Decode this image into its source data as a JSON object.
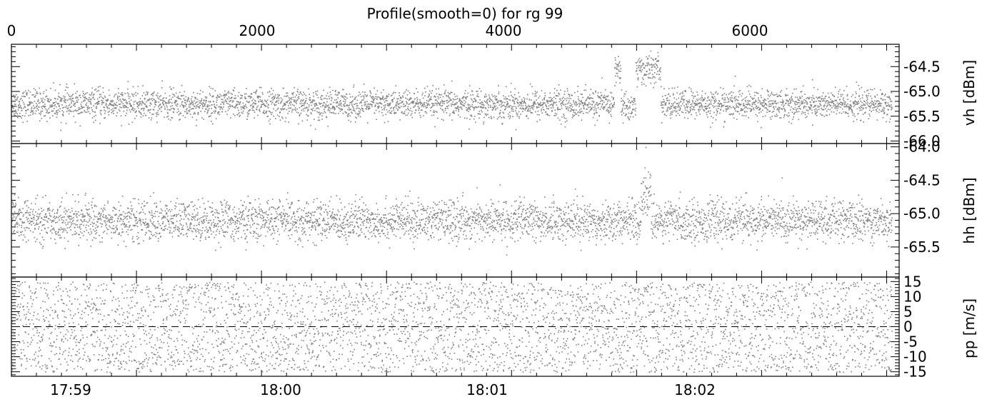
{
  "chart_data": [
    {
      "type": "scatter",
      "panel": "vh",
      "title": "Profile(smooth=0) for rg 99",
      "ylabel": "vh [dBm]",
      "xlabel": "",
      "top_axis": {
        "ticks": [
          0,
          2000,
          4000,
          6000
        ],
        "labels": [
          "0",
          "2000",
          "4000",
          "6000"
        ]
      },
      "xlim": [
        0,
        7100
      ],
      "ylim": [
        -66.05,
        -64.05
      ],
      "yticks": [
        -66.0,
        -65.5,
        -65.0,
        -64.5
      ],
      "ytick_labels": [
        "-66.0",
        "-65.5",
        "-65.0",
        "-64.5"
      ],
      "baseline_mean": -65.25,
      "noise_std": 0.15,
      "anomalies": [
        {
          "x_start": 4820,
          "x_end": 4870,
          "mean": -64.55
        },
        {
          "x_start": 4870,
          "x_end": 4990,
          "mean": -65.3
        },
        {
          "x_start": 4990,
          "x_end": 5190,
          "mean": -64.55
        }
      ],
      "color": "#808080",
      "grid": false
    },
    {
      "type": "scatter",
      "panel": "hh",
      "ylabel": "hh [dBm]",
      "xlim": [
        0,
        7100
      ],
      "ylim": [
        -65.95,
        -63.95
      ],
      "yticks": [
        -65.5,
        -65.0,
        -64.5,
        -64.0
      ],
      "ytick_labels": [
        "-65.5",
        "-65.0",
        "-64.5",
        "-64.0"
      ],
      "baseline_mean": -65.1,
      "noise_std": 0.15,
      "spike": {
        "x": 5070,
        "value": -64.0
      },
      "color": "#808080",
      "grid": false
    },
    {
      "type": "scatter",
      "panel": "pp",
      "ylabel": "pp [m/s]",
      "xlim": [
        0,
        7100
      ],
      "ylim": [
        -16.5,
        16.5
      ],
      "yticks": [
        -15,
        -10,
        -5,
        0,
        5,
        10,
        15
      ],
      "ytick_labels": [
        "-15",
        "-10",
        "-5",
        "0",
        "5",
        "10",
        "15"
      ],
      "distribution": {
        "min": -15,
        "max": 15
      },
      "zero_line": {
        "y": 0,
        "style": "dashed"
      },
      "color": "#808080",
      "grid": false
    }
  ],
  "bottom_axis": {
    "labels": [
      "17:59",
      "18:00",
      "18:01",
      "18:02"
    ],
    "tick_positions": [
      600,
      2280,
      3960,
      5640
    ]
  }
}
